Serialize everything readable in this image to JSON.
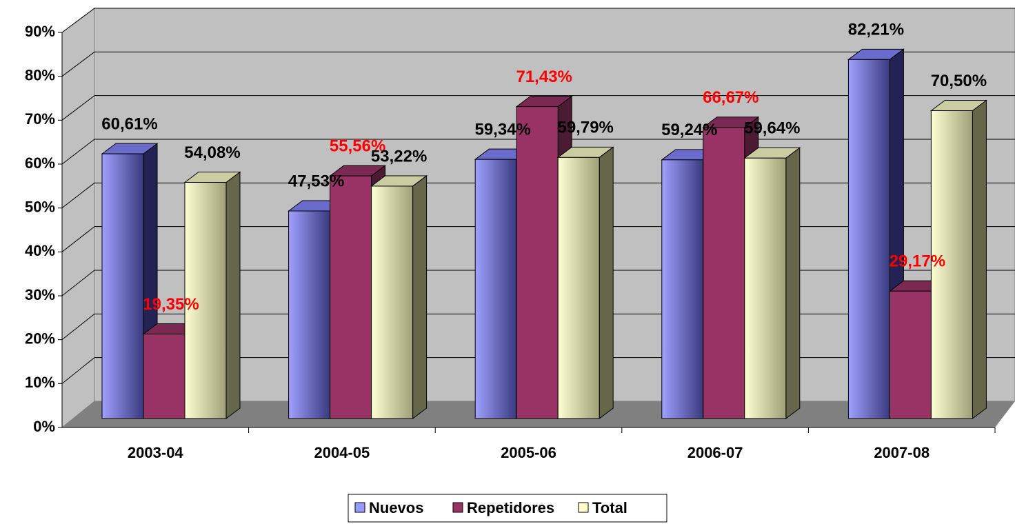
{
  "chart_data": {
    "type": "bar",
    "categories": [
      "2003-04",
      "2004-05",
      "2005-06",
      "2006-07",
      "2007-08"
    ],
    "series": [
      {
        "name": "Nuevos",
        "color": "#9999ff",
        "values": [
          60.61,
          47.53,
          59.34,
          59.24,
          82.21
        ],
        "value_labels": [
          "60,61%",
          "47,53%",
          "59,34%",
          "59,24%",
          "82,21%"
        ],
        "label_color": "#000000"
      },
      {
        "name": "Repetidores",
        "color": "#993366",
        "values": [
          19.35,
          55.56,
          71.43,
          66.67,
          29.17
        ],
        "value_labels": [
          "19,35%",
          "55,56%",
          "71,43%",
          "66,67%",
          "29,17%"
        ],
        "label_color": "#ff0000"
      },
      {
        "name": "Total",
        "color": "#ffffcc",
        "values": [
          54.08,
          53.22,
          59.79,
          59.64,
          70.5
        ],
        "value_labels": [
          "54,08%",
          "53,22%",
          "59,79%",
          "59,64%",
          "70,50%"
        ],
        "label_color": "#000000"
      }
    ],
    "ylim": [
      0,
      90
    ],
    "yticks": [
      {
        "value": 0,
        "label": "0%"
      },
      {
        "value": 10,
        "label": "10%"
      },
      {
        "value": 20,
        "label": "20%"
      },
      {
        "value": 30,
        "label": "30%"
      },
      {
        "value": 40,
        "label": "40%"
      },
      {
        "value": 50,
        "label": "50%"
      },
      {
        "value": 60,
        "label": "60%"
      },
      {
        "value": 70,
        "label": "70%"
      },
      {
        "value": 80,
        "label": "80%"
      },
      {
        "value": 90,
        "label": "90%"
      }
    ],
    "grid": true,
    "legend": "bottom"
  }
}
